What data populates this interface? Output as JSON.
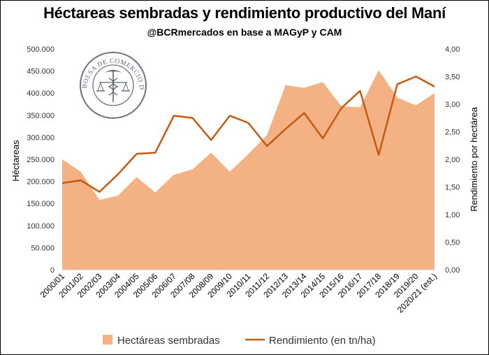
{
  "chart_data": {
    "type": "area+line",
    "title": "Héctareas sembradas y rendimiento productivo del Maní",
    "subtitle": "@BCRmercados en base a MAGyP y CAM",
    "watermark_text": "BOLSA DE COMERCIO DE ROSARIO",
    "categories": [
      "2000/01",
      "2001/02",
      "2002/03",
      "2003/04",
      "2004/05",
      "2005/06",
      "2006/07",
      "2007/08",
      "2008/09",
      "2009/10",
      "2010/11",
      "2011/12",
      "2012/13",
      "2013/14",
      "2014/15",
      "2015/16",
      "2016/17",
      "2017/18",
      "2018/19",
      "2019/20",
      "2020/21 (est.)"
    ],
    "series": [
      {
        "name": "Hectáreas sembradas",
        "type": "area",
        "axis": "left",
        "color": "#f4b183",
        "values": [
          250000,
          222000,
          158000,
          168000,
          210000,
          175000,
          215000,
          227000,
          265000,
          222000,
          262000,
          305000,
          418000,
          412000,
          425000,
          370000,
          368000,
          452000,
          390000,
          372000,
          400000
        ]
      },
      {
        "name": "Rendimiento (en tn/ha)",
        "type": "line",
        "axis": "right",
        "color": "#c55a11",
        "values": [
          1.57,
          1.62,
          1.41,
          1.73,
          2.1,
          2.12,
          2.79,
          2.75,
          2.35,
          2.79,
          2.66,
          2.24,
          2.55,
          2.84,
          2.38,
          2.93,
          3.24,
          2.08,
          3.36,
          3.5,
          3.32
        ]
      }
    ],
    "ylabel": "Héctareas",
    "y2label": "Rendimiento  por hectárea",
    "ylim": [
      0,
      500000
    ],
    "y2lim": [
      0,
      4
    ],
    "yticks": [
      "0",
      "50.000",
      "100.000",
      "150.000",
      "200.000",
      "250.000",
      "300.000",
      "350.000",
      "400.000",
      "450.000",
      "500.000"
    ],
    "y2ticks": [
      "0,00",
      "0,50",
      "1,00",
      "1,50",
      "2,00",
      "2,50",
      "3,00",
      "3,50",
      "4,00"
    ],
    "legend_labels": [
      "Hectáreas sembradas",
      "Rendimiento (en tn/ha)"
    ],
    "legend_position": "bottom",
    "grid": false
  }
}
